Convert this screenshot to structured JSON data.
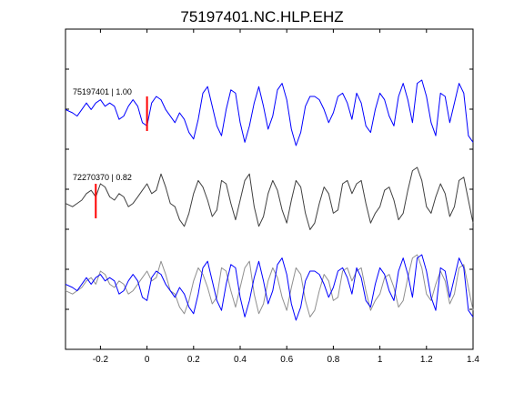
{
  "chart_data": {
    "type": "line",
    "title": "75197401.NC.HLP.EHZ",
    "xlabel": "",
    "ylabel": "",
    "xlim": [
      -0.35,
      1.4
    ],
    "x_ticks": [
      -0.2,
      0,
      0.2,
      0.4,
      0.6,
      0.8,
      1,
      1.2,
      1.4
    ],
    "x_tick_labels": [
      "-0.2",
      "0",
      "0.2",
      "0.4",
      "0.6",
      "0.8",
      "1",
      "1.2",
      "1.4"
    ],
    "y_tick_count": 7,
    "grid": false,
    "colors": {
      "primary": "#0000ff",
      "secondary": "#404040",
      "overlay_secondary": "#909090",
      "pick": "#ff0000"
    },
    "traces": [
      {
        "label": "75197401 | 1.00",
        "color": "#0000ff",
        "pick_time": 0.0,
        "x": [
          -0.35,
          -0.32,
          -0.3,
          -0.28,
          -0.26,
          -0.24,
          -0.22,
          -0.2,
          -0.18,
          -0.16,
          -0.14,
          -0.12,
          -0.1,
          -0.08,
          -0.06,
          -0.04,
          -0.02,
          0.0,
          0.02,
          0.04,
          0.06,
          0.08,
          0.1,
          0.12,
          0.14,
          0.16,
          0.18,
          0.2,
          0.22,
          0.24,
          0.26,
          0.28,
          0.3,
          0.32,
          0.34,
          0.36,
          0.38,
          0.4,
          0.42,
          0.44,
          0.46,
          0.48,
          0.5,
          0.52,
          0.54,
          0.56,
          0.58,
          0.6,
          0.62,
          0.64,
          0.66,
          0.68,
          0.7,
          0.72,
          0.74,
          0.76,
          0.78,
          0.8,
          0.82,
          0.84,
          0.86,
          0.88,
          0.9,
          0.92,
          0.94,
          0.96,
          0.98,
          1.0,
          1.02,
          1.04,
          1.06,
          1.08,
          1.1,
          1.12,
          1.14,
          1.16,
          1.18,
          1.2,
          1.22,
          1.24,
          1.26,
          1.28,
          1.3,
          1.32,
          1.34,
          1.36,
          1.38,
          1.4
        ],
        "y": [
          0.1,
          0.0,
          -0.1,
          0.1,
          0.3,
          0.1,
          0.3,
          0.4,
          0.2,
          0.3,
          0.2,
          -0.2,
          -0.1,
          0.2,
          0.4,
          0.2,
          -0.3,
          -0.4,
          0.3,
          0.5,
          0.4,
          0.1,
          -0.1,
          -0.3,
          0.0,
          -0.2,
          -0.6,
          -0.8,
          -0.2,
          0.6,
          0.8,
          0.2,
          -0.4,
          -0.7,
          0.1,
          0.7,
          0.6,
          -0.3,
          -0.9,
          -0.4,
          0.3,
          0.8,
          0.2,
          -0.5,
          -0.1,
          0.7,
          0.9,
          0.4,
          -0.5,
          -1.0,
          -0.6,
          0.2,
          0.5,
          0.5,
          0.4,
          0.1,
          -0.3,
          0.0,
          0.5,
          0.6,
          0.3,
          -0.2,
          0.6,
          0.3,
          -0.4,
          -0.6,
          0.1,
          0.6,
          0.4,
          -0.1,
          -0.4,
          0.5,
          0.9,
          0.4,
          -0.3,
          0.9,
          1.0,
          0.5,
          -0.3,
          -0.7,
          0.6,
          0.5,
          -0.3,
          0.3,
          0.9,
          0.6,
          -0.7,
          -0.9
        ]
      },
      {
        "label": "72270370 | 0.82",
        "color": "#404040",
        "pick_time": -0.22,
        "x": [
          -0.35,
          -0.32,
          -0.3,
          -0.28,
          -0.26,
          -0.24,
          -0.22,
          -0.2,
          -0.18,
          -0.16,
          -0.14,
          -0.12,
          -0.1,
          -0.08,
          -0.06,
          -0.04,
          -0.02,
          0.0,
          0.02,
          0.04,
          0.06,
          0.08,
          0.1,
          0.12,
          0.14,
          0.16,
          0.18,
          0.2,
          0.22,
          0.24,
          0.26,
          0.28,
          0.3,
          0.32,
          0.34,
          0.36,
          0.38,
          0.4,
          0.42,
          0.44,
          0.46,
          0.48,
          0.5,
          0.52,
          0.54,
          0.56,
          0.58,
          0.6,
          0.62,
          0.64,
          0.66,
          0.68,
          0.7,
          0.72,
          0.74,
          0.76,
          0.78,
          0.8,
          0.82,
          0.84,
          0.86,
          0.88,
          0.9,
          0.92,
          0.94,
          0.96,
          0.98,
          1.0,
          1.02,
          1.04,
          1.06,
          1.08,
          1.1,
          1.12,
          1.14,
          1.16,
          1.18,
          1.2,
          1.22,
          1.24,
          1.26,
          1.28,
          1.3,
          1.32,
          1.34,
          1.36,
          1.38,
          1.4
        ],
        "y": [
          -0.1,
          -0.2,
          -0.1,
          0.0,
          0.2,
          0.3,
          0.1,
          0.5,
          0.4,
          0.1,
          0.0,
          0.2,
          0.1,
          -0.2,
          -0.1,
          0.1,
          0.3,
          0.5,
          0.2,
          0.3,
          0.8,
          0.4,
          -0.1,
          -0.2,
          -0.6,
          -0.8,
          -0.4,
          0.2,
          0.6,
          0.4,
          0.0,
          -0.5,
          -0.3,
          0.6,
          0.5,
          -0.1,
          -0.6,
          0.0,
          0.6,
          0.8,
          -0.2,
          -0.8,
          -0.5,
          0.2,
          0.6,
          0.3,
          -0.3,
          -0.7,
          0.0,
          0.6,
          0.4,
          -0.4,
          -0.9,
          -0.7,
          -0.1,
          0.4,
          0.2,
          -0.4,
          -0.3,
          0.5,
          0.6,
          0.2,
          0.5,
          0.6,
          -0.1,
          -0.7,
          -0.4,
          -0.2,
          0.3,
          0.4,
          0.0,
          -0.6,
          -0.4,
          0.3,
          0.9,
          1.0,
          0.6,
          -0.2,
          -0.4,
          0.1,
          0.5,
          0.2,
          -0.5,
          -0.2,
          0.6,
          0.7,
          0.0,
          -0.7
        ]
      }
    ]
  }
}
